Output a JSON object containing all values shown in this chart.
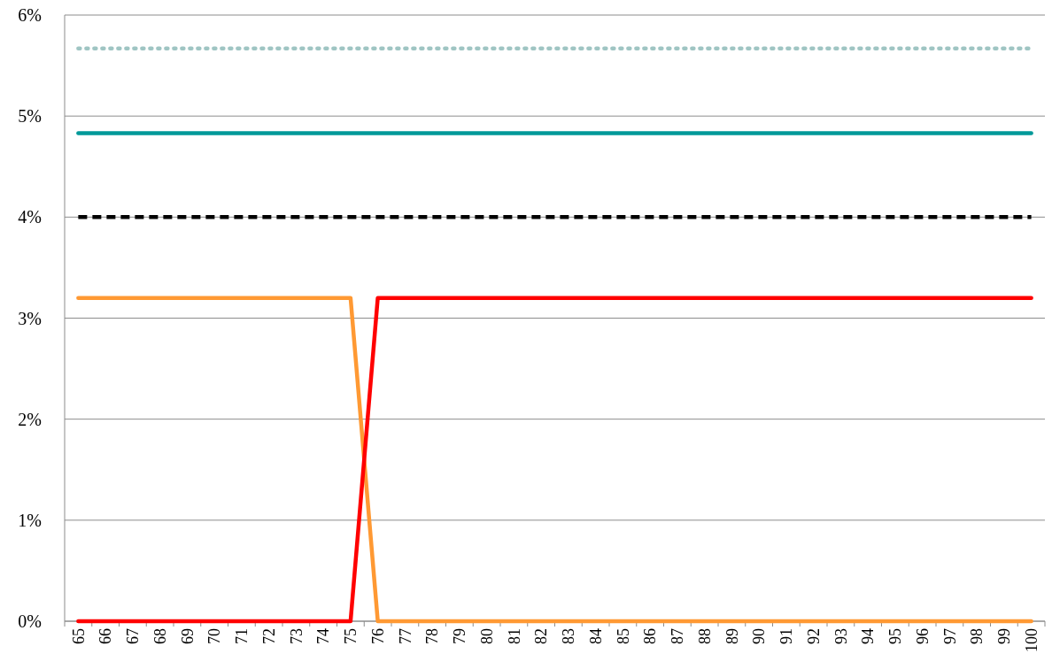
{
  "chart_data": {
    "type": "line",
    "categories": [
      "65",
      "66",
      "67",
      "68",
      "69",
      "70",
      "71",
      "72",
      "73",
      "74",
      "75",
      "76",
      "77",
      "78",
      "79",
      "80",
      "81",
      "82",
      "83",
      "84",
      "85",
      "86",
      "87",
      "88",
      "89",
      "90",
      "91",
      "92",
      "93",
      "94",
      "95",
      "96",
      "97",
      "98",
      "99",
      "100"
    ],
    "series": [
      {
        "color": "#9fc5c3",
        "line_style": "dotted",
        "values": [
          5.67,
          5.67,
          5.67,
          5.67,
          5.67,
          5.67,
          5.67,
          5.67,
          5.67,
          5.67,
          5.67,
          5.67,
          5.67,
          5.67,
          5.67,
          5.67,
          5.67,
          5.67,
          5.67,
          5.67,
          5.67,
          5.67,
          5.67,
          5.67,
          5.67,
          5.67,
          5.67,
          5.67,
          5.67,
          5.67,
          5.67,
          5.67,
          5.67,
          5.67,
          5.67,
          5.67
        ]
      },
      {
        "color": "#009999",
        "line_style": "solid",
        "values": [
          4.83,
          4.83,
          4.83,
          4.83,
          4.83,
          4.83,
          4.83,
          4.83,
          4.83,
          4.83,
          4.83,
          4.83,
          4.83,
          4.83,
          4.83,
          4.83,
          4.83,
          4.83,
          4.83,
          4.83,
          4.83,
          4.83,
          4.83,
          4.83,
          4.83,
          4.83,
          4.83,
          4.83,
          4.83,
          4.83,
          4.83,
          4.83,
          4.83,
          4.83,
          4.83,
          4.83
        ]
      },
      {
        "color": "#000000",
        "line_style": "dashed",
        "values": [
          4,
          4,
          4,
          4,
          4,
          4,
          4,
          4,
          4,
          4,
          4,
          4,
          4,
          4,
          4,
          4,
          4,
          4,
          4,
          4,
          4,
          4,
          4,
          4,
          4,
          4,
          4,
          4,
          4,
          4,
          4,
          4,
          4,
          4,
          4,
          4
        ]
      },
      {
        "color": "#ff9933",
        "line_style": "solid",
        "values": [
          3.2,
          3.2,
          3.2,
          3.2,
          3.2,
          3.2,
          3.2,
          3.2,
          3.2,
          3.2,
          3.2,
          0,
          0,
          0,
          0,
          0,
          0,
          0,
          0,
          0,
          0,
          0,
          0,
          0,
          0,
          0,
          0,
          0,
          0,
          0,
          0,
          0,
          0,
          0,
          0,
          0
        ]
      },
      {
        "color": "#ff0000",
        "line_style": "solid",
        "values": [
          0,
          0,
          0,
          0,
          0,
          0,
          0,
          0,
          0,
          0,
          0,
          3.2,
          3.2,
          3.2,
          3.2,
          3.2,
          3.2,
          3.2,
          3.2,
          3.2,
          3.2,
          3.2,
          3.2,
          3.2,
          3.2,
          3.2,
          3.2,
          3.2,
          3.2,
          3.2,
          3.2,
          3.2,
          3.2,
          3.2,
          3.2,
          3.2
        ]
      }
    ],
    "ylim": [
      0,
      6
    ],
    "yticks": [
      {
        "value": 0,
        "label": "0%"
      },
      {
        "value": 1,
        "label": "1%"
      },
      {
        "value": 2,
        "label": "2%"
      },
      {
        "value": 3,
        "label": "3%"
      },
      {
        "value": 4,
        "label": "4%"
      },
      {
        "value": 5,
        "label": "5%"
      },
      {
        "value": 6,
        "label": "6%"
      }
    ],
    "grid": "y",
    "marker": "none"
  }
}
